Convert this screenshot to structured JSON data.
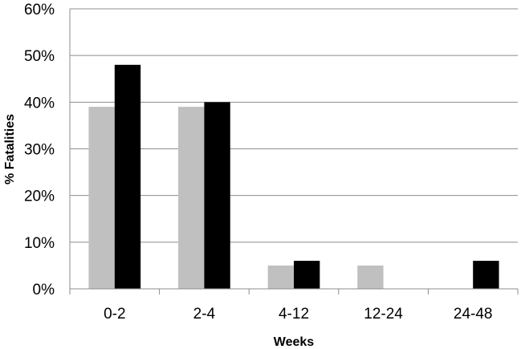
{
  "chart_data": {
    "type": "bar",
    "title": "",
    "xlabel": "Weeks",
    "ylabel": "% Fatalities",
    "categories": [
      "0-2",
      "2-4",
      "4-12",
      "12-24",
      "24-48"
    ],
    "series": [
      {
        "values": [
          39,
          39,
          5,
          5,
          0
        ],
        "color": "#c0c0c0"
      },
      {
        "values": [
          48,
          40,
          6,
          0,
          6
        ],
        "color": "#000000"
      }
    ],
    "ylim": [
      0,
      60
    ],
    "yticks": [
      "0%",
      "10%",
      "20%",
      "30%",
      "40%",
      "50%",
      "60%"
    ],
    "grid": true,
    "legend": "none"
  }
}
